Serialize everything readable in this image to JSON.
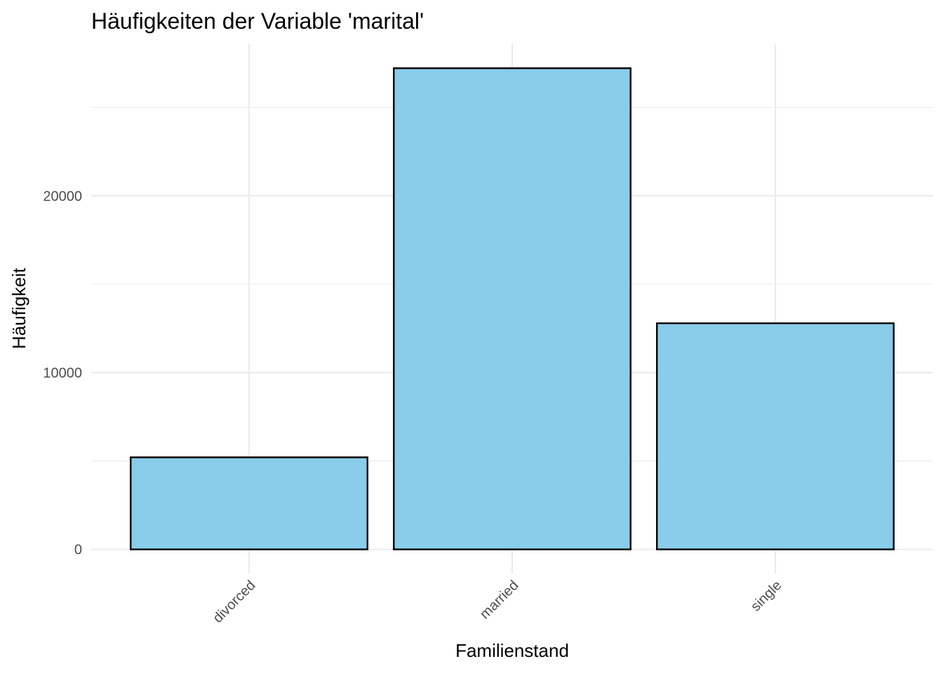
{
  "chart_data": {
    "type": "bar",
    "title": "Häufigkeiten der Variable 'marital'",
    "xlabel": "Familienstand",
    "ylabel": "Häufigkeit",
    "categories": [
      "divorced",
      "married",
      "single"
    ],
    "values": [
      5207,
      27214,
      12790
    ],
    "ylim": [
      -1360.7,
      28574.7
    ],
    "y_ticks": [
      0,
      10000,
      20000
    ],
    "y_tick_labels": [
      "0",
      "10000",
      "20000"
    ],
    "y_minor_ticks": [
      5000,
      15000,
      25000
    ],
    "grid": true,
    "legend": "none",
    "x_tick_rotation": -45,
    "colors": {
      "bar_fill": "#89CDEA",
      "bar_outline": "#000000",
      "grid": "#EBEBEB",
      "background": "#FFFFFF"
    }
  }
}
